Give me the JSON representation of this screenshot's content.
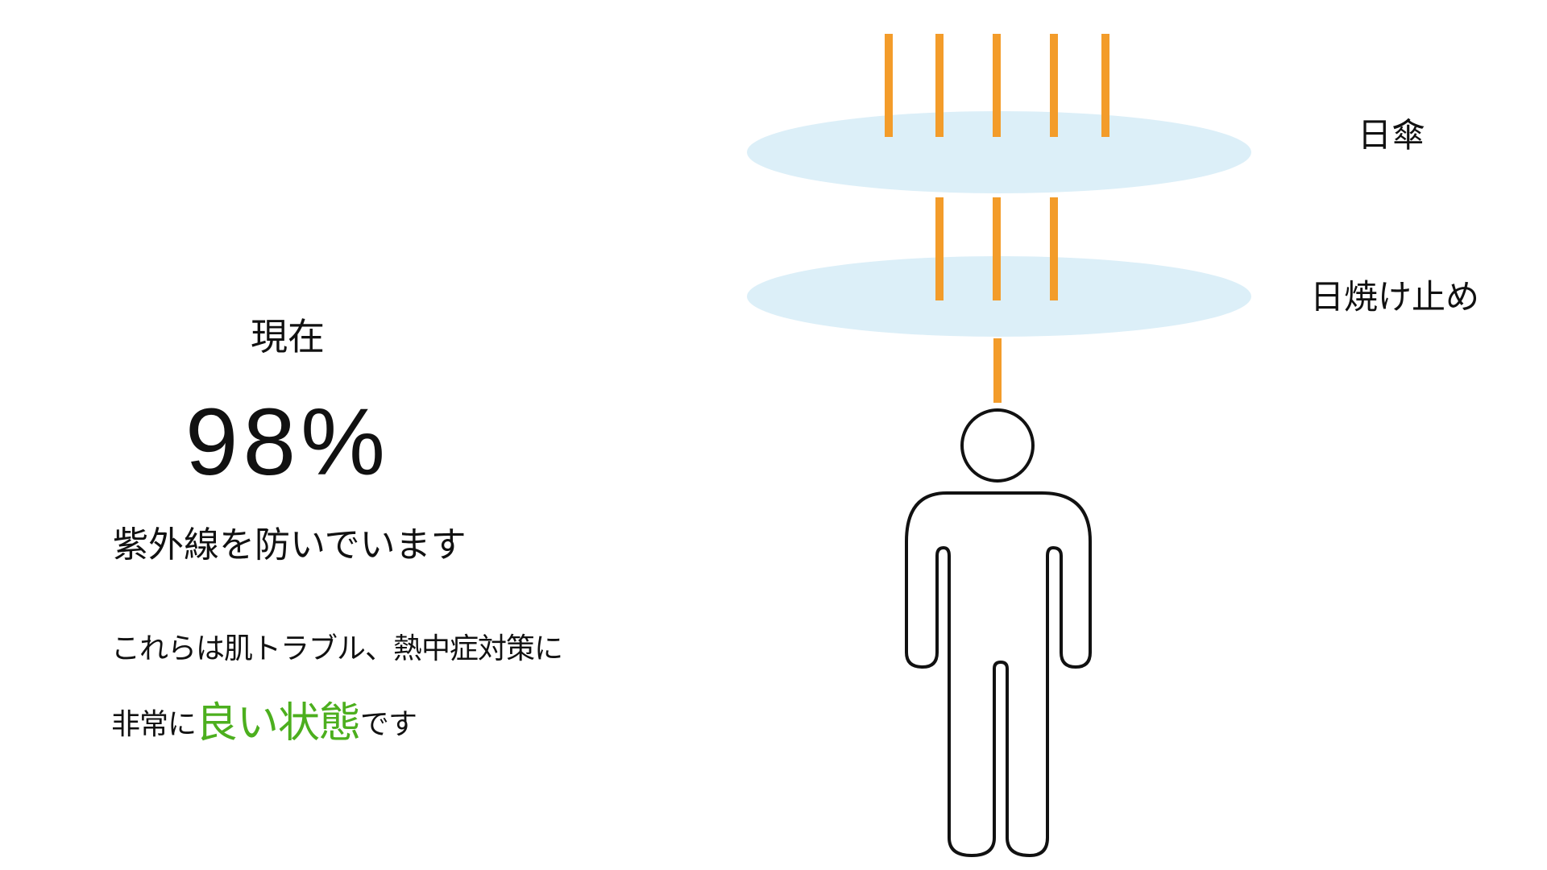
{
  "colors": {
    "ray": "#F39C2A",
    "shield_fill": "#DCEFF8",
    "good_status": "#4CAF1E",
    "text": "#111111",
    "figure_stroke": "#111111"
  },
  "status": {
    "current_label": "現在",
    "percent": "98%",
    "percent_value": 98,
    "uv_message": "紫外線を防いでいます"
  },
  "benefit": {
    "line1": "これらは肌トラブル、熱中症対策に",
    "line2_prefix": "非常に",
    "line2_highlight": "良い状態",
    "line2_suffix": "です"
  },
  "diagram": {
    "layers": [
      {
        "label": "日傘",
        "rays_passing": 5
      },
      {
        "label": "日焼け止め",
        "rays_passing": 3
      }
    ],
    "rays_reaching_person": 1,
    "person_icon": "person-icon"
  }
}
